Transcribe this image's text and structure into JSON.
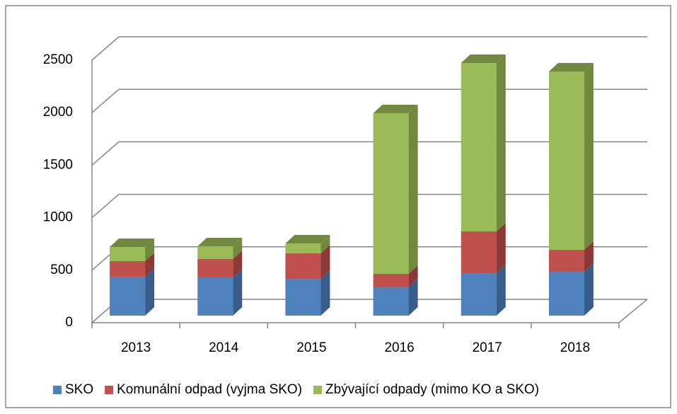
{
  "chart_data": {
    "type": "bar3d_stacked",
    "categories": [
      "2013",
      "2014",
      "2015",
      "2016",
      "2017",
      "2018"
    ],
    "series": [
      {
        "name": "SKO",
        "color": "#4f81bd",
        "side": "#385d8a",
        "values": [
          371,
          364,
          350,
          276,
          404,
          418
        ]
      },
      {
        "name": "Komunální odpad (vyjma SKO)",
        "color": "#c0504d",
        "side": "#8c3836",
        "values": [
          148,
          175,
          243,
          122,
          398,
          209
        ]
      },
      {
        "name": "Zbývající odpady (mimo KO a SKO)",
        "color": "#9bbb59",
        "side": "#71893f",
        "values": [
          135,
          121,
          94,
          1529,
          1604,
          1698
        ]
      }
    ],
    "ylim": [
      0,
      2500
    ],
    "yticks": [
      0,
      500,
      1000,
      1500,
      2000,
      2500
    ],
    "grid": true,
    "legend": "bottom"
  }
}
